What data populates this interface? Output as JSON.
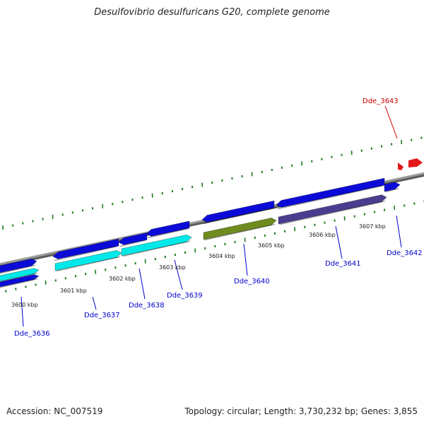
{
  "title": "Desulfovibrio desulfuricans G20, complete genome",
  "footer": {
    "accession": "Accession: NC_007519",
    "stats": "Topology: circular; Length: 3,730,232 bp; Genes: 3,855"
  },
  "colors": {
    "backbone": "#808080",
    "tick": "#1f7a1f",
    "gene_blue": "#0b0bd8",
    "gene_cyan": "#00e8e8",
    "gene_olive": "#6e8c1e",
    "gene_purple": "#4a3d90",
    "gene_red": "#e41a1a",
    "label_blue": "#0000cc",
    "label_red": "#cc0000"
  },
  "scale_labels": [
    "3600 kbp",
    "3601 kbp",
    "3602 kbp",
    "3603 kbp",
    "3604 kbp",
    "3605 kbp",
    "3606 kbp",
    "3607 kbp"
  ],
  "gene_labels": [
    {
      "id": "dde_3636",
      "text": "Dde_3636",
      "color": "blue"
    },
    {
      "id": "dde_3637",
      "text": "Dde_3637",
      "color": "blue"
    },
    {
      "id": "dde_3638",
      "text": "Dde_3638",
      "color": "blue"
    },
    {
      "id": "dde_3639",
      "text": "Dde_3639",
      "color": "blue"
    },
    {
      "id": "dde_3640",
      "text": "Dde_3640",
      "color": "blue"
    },
    {
      "id": "dde_3641",
      "text": "Dde_3641",
      "color": "blue"
    },
    {
      "id": "dde_3642",
      "text": "Dde_3642",
      "color": "blue"
    },
    {
      "id": "dde_3643",
      "text": "Dde_3643",
      "color": "red"
    }
  ]
}
